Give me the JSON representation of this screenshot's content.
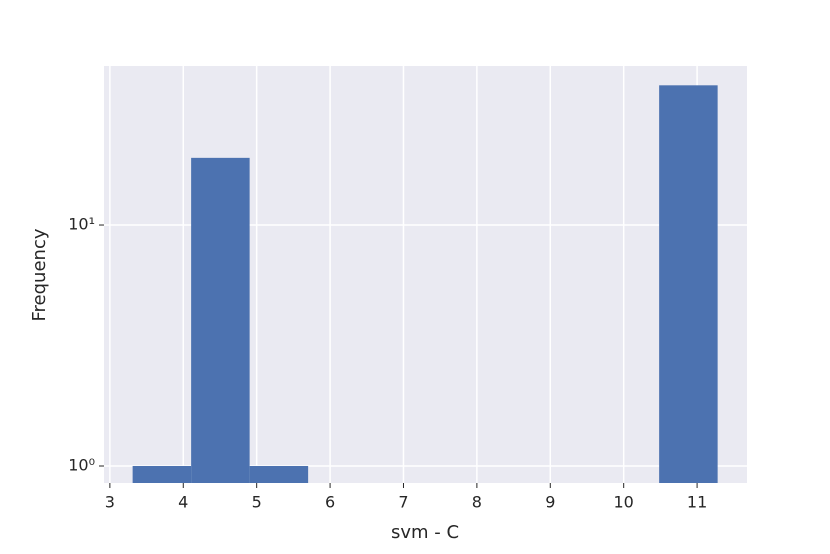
{
  "chart_data": {
    "type": "histogram",
    "x_label": "svm - C",
    "y_label": "Frequency",
    "bins": [
      3.31,
      4.107,
      4.904,
      5.701,
      6.498,
      7.295,
      8.092,
      8.889,
      9.686,
      10.483,
      11.28
    ],
    "counts": [
      1,
      19,
      1,
      0,
      0,
      0,
      0,
      0,
      0,
      38
    ],
    "color": "#4c72b0",
    "log_y": true,
    "grid": true,
    "xlim": [
      2.92,
      11.68
    ],
    "ylim": [
      0.85,
      45.7
    ],
    "xticks": [
      3,
      4,
      5,
      6,
      7,
      8,
      9,
      10,
      11
    ],
    "yticks": [
      {
        "value": 1,
        "label": "10⁰"
      },
      {
        "value": 10,
        "label": "10¹"
      }
    ]
  }
}
